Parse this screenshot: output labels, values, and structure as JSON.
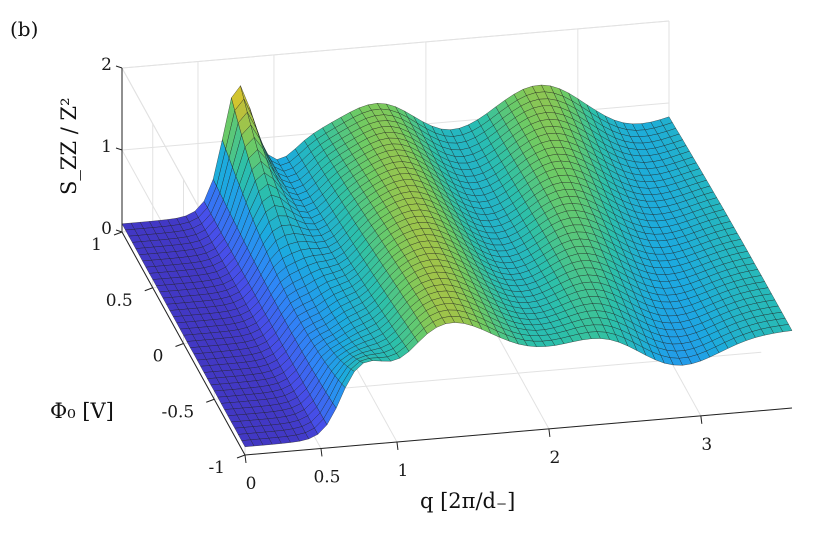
{
  "panel_label": "(b)",
  "chart_data": {
    "type": "surface",
    "x": {
      "label": "q [2π/d₋]",
      "range": [
        0,
        3.6
      ],
      "ticks": [
        0,
        0.5,
        1,
        2,
        3
      ],
      "tick_labels": [
        "0",
        "0.5",
        "1",
        "2",
        "3"
      ]
    },
    "y": {
      "label": "Φ₀ [V]",
      "range": [
        -1,
        1
      ],
      "ticks": [
        -1,
        -0.5,
        0,
        0.5,
        1
      ],
      "tick_labels": [
        "-1",
        "-0.5",
        "0",
        "0.5",
        "1"
      ]
    },
    "z": {
      "label": "S_ZZ / Z²",
      "range": [
        0,
        2
      ],
      "ticks": [
        0,
        1,
        2
      ],
      "tick_labels": [
        "0",
        "1",
        "2"
      ]
    },
    "colormap": "parula",
    "grid": true,
    "features": {
      "main_peak": {
        "q": 0.75,
        "phi": 1.0,
        "value": 1.85
      },
      "secondary_peak": {
        "q": 0.75,
        "phi": -1.0,
        "value": 1.15
      },
      "ridge_maxima_at_phi_1": [
        1.75,
        2.75
      ],
      "ridge_maxima_at_phi_minus_1": [
        1.35,
        2.3
      ],
      "low_q_plateau": 0.1,
      "high_q_value": 0.9
    }
  }
}
